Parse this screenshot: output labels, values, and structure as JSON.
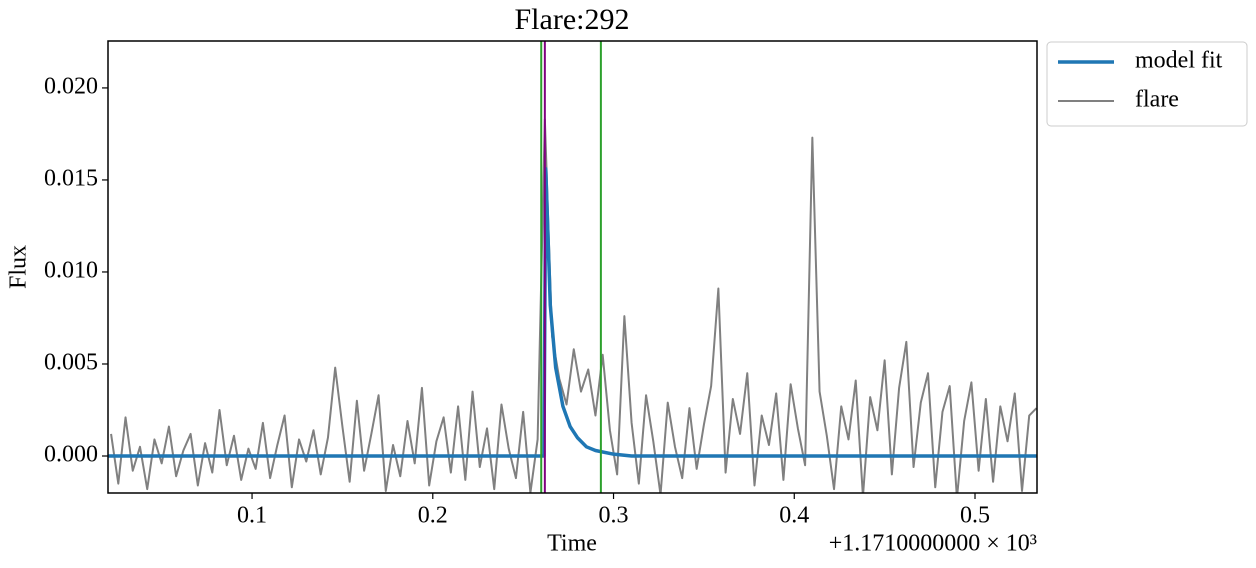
{
  "chart_data": {
    "type": "line",
    "title": "Flare:292",
    "x_label": "Time",
    "y_label": "Flux",
    "x_offset_label": "+1.1710000000 × 10³",
    "xlim": [
      0.0203,
      0.5343
    ],
    "ylim": [
      -0.00201,
      0.02255
    ],
    "xticks": [
      0.1,
      0.2,
      0.3,
      0.4,
      0.5
    ],
    "yticks": [
      {
        "value": 0,
        "label": "0.000"
      },
      {
        "value": 0.005,
        "label": "0.005"
      },
      {
        "value": 0.01,
        "label": "0.010"
      },
      {
        "value": 0.015,
        "label": "0.015"
      },
      {
        "value": 0.02,
        "label": "0.020"
      }
    ],
    "legend": "outside-upper-right",
    "vlines": [
      {
        "x": 0.26,
        "color": "#2ca02c"
      },
      {
        "x": 0.293,
        "color": "#2ca02c"
      },
      {
        "x": 0.262,
        "color": "#800080"
      }
    ],
    "series": [
      {
        "name": "model fit",
        "color": "#1f77b4",
        "width": 3.5,
        "x": [
          0.02,
          0.2615,
          0.2625,
          0.265,
          0.268,
          0.272,
          0.276,
          0.28,
          0.285,
          0.29,
          0.3,
          0.31,
          0.534
        ],
        "values": [
          0,
          0,
          0.0156,
          0.0082,
          0.0048,
          0.0027,
          0.0016,
          0.001,
          0.0005,
          0.0003,
          0.0001,
          0,
          0
        ]
      },
      {
        "name": "flare",
        "color": "#808080",
        "width": 2,
        "x": [
          0.022,
          0.026,
          0.03,
          0.034,
          0.038,
          0.042,
          0.046,
          0.05,
          0.054,
          0.058,
          0.062,
          0.066,
          0.07,
          0.074,
          0.078,
          0.082,
          0.086,
          0.09,
          0.094,
          0.098,
          0.102,
          0.106,
          0.11,
          0.114,
          0.118,
          0.122,
          0.126,
          0.13,
          0.134,
          0.138,
          0.142,
          0.146,
          0.15,
          0.154,
          0.158,
          0.162,
          0.166,
          0.17,
          0.174,
          0.178,
          0.182,
          0.186,
          0.19,
          0.194,
          0.198,
          0.202,
          0.206,
          0.21,
          0.214,
          0.218,
          0.222,
          0.226,
          0.23,
          0.234,
          0.238,
          0.242,
          0.246,
          0.25,
          0.254,
          0.258,
          0.262,
          0.266,
          0.27,
          0.274,
          0.278,
          0.282,
          0.286,
          0.29,
          0.294,
          0.298,
          0.302,
          0.306,
          0.31,
          0.314,
          0.318,
          0.322,
          0.326,
          0.33,
          0.334,
          0.338,
          0.342,
          0.346,
          0.35,
          0.354,
          0.358,
          0.362,
          0.366,
          0.37,
          0.374,
          0.378,
          0.382,
          0.386,
          0.39,
          0.394,
          0.398,
          0.402,
          0.406,
          0.41,
          0.414,
          0.418,
          0.422,
          0.426,
          0.43,
          0.434,
          0.438,
          0.442,
          0.446,
          0.45,
          0.454,
          0.458,
          0.462,
          0.466,
          0.47,
          0.474,
          0.478,
          0.482,
          0.486,
          0.49,
          0.494,
          0.498,
          0.502,
          0.506,
          0.51,
          0.514,
          0.518,
          0.522,
          0.526,
          0.53,
          0.534
        ],
        "values": [
          0.0012,
          -0.0015,
          0.0021,
          -0.0008,
          0.0005,
          -0.0018,
          0.0009,
          -0.0004,
          0.0016,
          -0.0011,
          0.0003,
          0.0012,
          -0.0016,
          0.0007,
          -0.0009,
          0.0025,
          -0.0005,
          0.0011,
          -0.0013,
          0.0004,
          -0.0007,
          0.0018,
          -0.0012,
          0.0006,
          0.0022,
          -0.0017,
          0.0009,
          -0.0003,
          0.0014,
          -0.001,
          0.001,
          0.0048,
          0.0016,
          -0.0014,
          0.003,
          -0.0008,
          0.0012,
          0.0033,
          -0.0019,
          0.0006,
          -0.0011,
          0.0019,
          -0.0004,
          0.0037,
          -0.0016,
          0.0008,
          0.0021,
          -0.0009,
          0.0027,
          -0.0013,
          0.0035,
          -0.0006,
          0.0015,
          -0.0018,
          0.0028,
          0.0004,
          -0.0012,
          0.0024,
          -0.002,
          0.0009,
          0.0183,
          0.0065,
          0.0042,
          0.0028,
          0.0058,
          0.0035,
          0.0047,
          0.0022,
          0.0055,
          0.0014,
          -0.001,
          0.0076,
          0.0018,
          -0.0015,
          0.0033,
          0.0008,
          -0.0021,
          0.0029,
          0.0005,
          -0.0012,
          0.0026,
          -0.0007,
          0.0017,
          0.0038,
          0.0091,
          -0.0009,
          0.0031,
          0.0012,
          0.0045,
          -0.0016,
          0.0022,
          0.0006,
          0.0034,
          -0.0013,
          0.0039,
          0.0015,
          -0.0005,
          0.0173,
          0.0035,
          0.0011,
          -0.0018,
          0.0027,
          0.0009,
          0.0041,
          -0.0022,
          0.0032,
          0.0014,
          0.0052,
          -0.001,
          0.0037,
          0.0062,
          -0.0006,
          0.0029,
          0.0045,
          -0.0017,
          0.0024,
          0.0038,
          -0.0023,
          0.0019,
          0.004,
          -0.0008,
          0.0031,
          -0.0014,
          0.0027,
          0.0008,
          0.0034,
          -0.0019,
          0.0022,
          0.0026
        ]
      }
    ]
  }
}
